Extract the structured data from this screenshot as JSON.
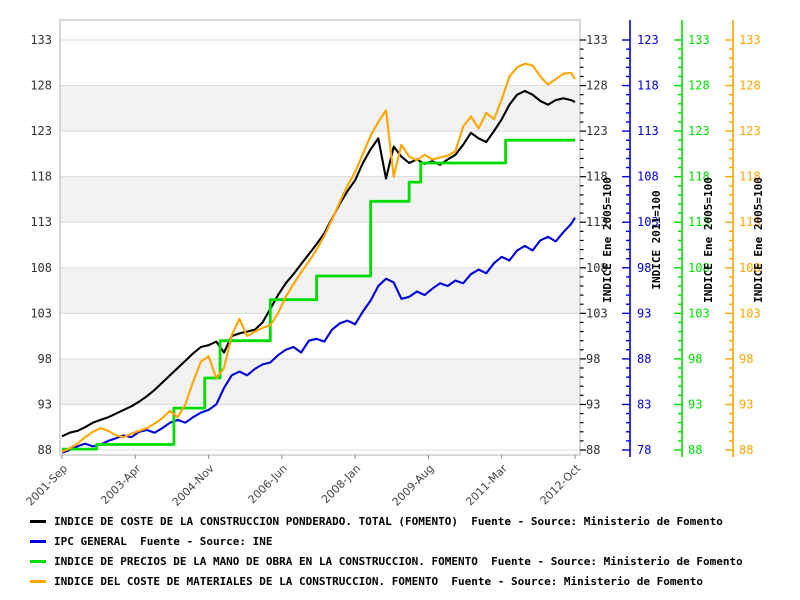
{
  "chart_data": {
    "type": "line",
    "title": "",
    "x_axis": {
      "unit": "months since 2001-Sep",
      "tick_months": [
        0,
        19,
        38,
        57,
        76,
        95,
        114,
        133
      ],
      "tick_labels": [
        "2001-Sep",
        "2003-Apr",
        "2004-Nov",
        "2006-Jun",
        "2008-Jan",
        "2009-Aug",
        "2011-Mar",
        "2012-Oct"
      ]
    },
    "y_axis_left": {
      "min": 88,
      "max": 133,
      "step": 5,
      "minor_step": 1,
      "label_color": "#333333"
    },
    "y_axes_right": [
      {
        "id": "fomento-total",
        "title": "INDICE Ene 2005=100",
        "min": 88,
        "max": 133,
        "step": 5,
        "minor_step": 1,
        "color": "#000000"
      },
      {
        "id": "ipc",
        "title": "INDICE 2011=100",
        "min": 78,
        "max": 123,
        "step": 5,
        "minor_step": 1,
        "color": "#0000dd"
      },
      {
        "id": "mano-de-obra",
        "title": "INDICE Ene 2005=100",
        "min": 88,
        "max": 133,
        "step": 5,
        "minor_step": 1,
        "color": "#00dd00"
      },
      {
        "id": "materiales",
        "title": "INDICE Ene 2005=100",
        "min": 88,
        "max": 133,
        "step": 5,
        "minor_step": 1,
        "color": "#ffa500"
      }
    ],
    "bands": [
      [
        93,
        98
      ],
      [
        103,
        108
      ],
      [
        113,
        118
      ],
      [
        123,
        128
      ]
    ],
    "band_color": "#f2f2f2",
    "grid_color": "#dcdcdc",
    "border_color": "#b0b0b0",
    "months": [
      0,
      2,
      4,
      6,
      8,
      10,
      12,
      14,
      16,
      18,
      20,
      22,
      24,
      26,
      28,
      30,
      32,
      34,
      36,
      38,
      40,
      42,
      44,
      46,
      48,
      50,
      52,
      54,
      56,
      58,
      60,
      62,
      64,
      66,
      68,
      70,
      72,
      74,
      76,
      78,
      80,
      82,
      84,
      86,
      88,
      90,
      92,
      94,
      96,
      98,
      100,
      102,
      104,
      106,
      108,
      110,
      112,
      114,
      116,
      118,
      120,
      122,
      124,
      126,
      128,
      130,
      132,
      133
    ],
    "series": [
      {
        "name": "indice-coste-construccion-total",
        "legend": "INDICE DE COSTE DE LA CONSTRUCCION PONDERADO. TOTAL (FOMENTO)  Fuente - Source: Ministerio de Fomento",
        "color": "#000000",
        "axis": "fomento-total",
        "step": false,
        "values": [
          89.5,
          89.9,
          90.1,
          90.5,
          91.0,
          91.3,
          91.6,
          92.0,
          92.4,
          92.8,
          93.3,
          93.9,
          94.6,
          95.4,
          96.2,
          97.0,
          97.8,
          98.6,
          99.3,
          99.5,
          99.9,
          98.7,
          100.5,
          100.8,
          101.0,
          101.2,
          102.0,
          103.5,
          105.0,
          106.3,
          107.3,
          108.4,
          109.5,
          110.6,
          111.8,
          113.4,
          115.0,
          116.4,
          117.6,
          119.5,
          121.0,
          122.2,
          117.8,
          121.3,
          120.2,
          119.5,
          119.9,
          119.4,
          119.7,
          119.3,
          119.9,
          120.4,
          121.5,
          122.8,
          122.2,
          121.8,
          123.0,
          124.3,
          125.9,
          127.0,
          127.4,
          127.0,
          126.3,
          125.9,
          126.4,
          126.6,
          126.4,
          126.2
        ]
      },
      {
        "name": "ipc-general",
        "legend": "IPC GENERAL  Fuente - Source: INE",
        "color": "#0000dd",
        "axis": "ipc",
        "step": false,
        "values": [
          77.7,
          78.0,
          78.4,
          78.7,
          78.4,
          78.6,
          79.0,
          79.3,
          79.6,
          79.4,
          80.0,
          80.2,
          79.9,
          80.4,
          81.0,
          81.3,
          81.0,
          81.6,
          82.1,
          82.4,
          83.0,
          84.8,
          86.2,
          86.6,
          86.2,
          86.9,
          87.4,
          87.6,
          88.4,
          89.0,
          89.3,
          88.7,
          90.0,
          90.2,
          89.9,
          91.2,
          91.9,
          92.2,
          91.8,
          93.2,
          94.4,
          96.0,
          96.8,
          96.4,
          94.6,
          94.8,
          95.4,
          95.0,
          95.7,
          96.3,
          96.0,
          96.6,
          96.3,
          97.3,
          97.8,
          97.4,
          98.5,
          99.2,
          98.8,
          99.9,
          100.4,
          99.9,
          101.0,
          101.4,
          100.9,
          101.9,
          102.8,
          103.5
        ]
      },
      {
        "name": "indice-mano-de-obra",
        "legend": "INDICE DE PRECIOS DE LA MANO DE OBRA EN LA CONSTRUCCION. FOMENTO  Fuente - Source: Ministerio de Fomento",
        "color": "#00dd00",
        "axis": "mano-de-obra",
        "step": true,
        "step_points": [
          [
            0,
            88.1
          ],
          [
            9,
            88.6
          ],
          [
            29,
            92.6
          ],
          [
            37,
            95.9
          ],
          [
            41,
            100.0
          ],
          [
            54,
            104.5
          ],
          [
            66,
            107.1
          ],
          [
            80,
            115.3
          ],
          [
            90,
            117.4
          ],
          [
            93,
            119.5
          ],
          [
            115,
            122.0
          ]
        ],
        "end_month": 133
      },
      {
        "name": "indice-materiales",
        "legend": "INDICE DEL COSTE DE MATERIALES DE LA CONSTRUCCION. FOMENTO  Fuente - Source: Ministerio de Fomento",
        "color": "#ffa500",
        "axis": "materiales",
        "step": false,
        "values": [
          87.8,
          88.2,
          88.7,
          89.4,
          90.0,
          90.4,
          90.1,
          89.6,
          89.4,
          89.8,
          90.1,
          90.4,
          90.9,
          91.5,
          92.3,
          91.6,
          93.0,
          95.5,
          97.7,
          98.3,
          95.9,
          97.0,
          100.6,
          102.4,
          100.5,
          101.0,
          101.4,
          101.7,
          103.0,
          104.8,
          106.2,
          107.5,
          108.7,
          110.0,
          111.5,
          113.3,
          115.2,
          117.0,
          118.5,
          120.5,
          122.5,
          124.0,
          125.3,
          118.0,
          121.5,
          120.2,
          119.8,
          120.4,
          119.9,
          120.1,
          120.3,
          120.8,
          123.5,
          124.6,
          123.3,
          125.0,
          124.3,
          126.5,
          129.0,
          130.0,
          130.4,
          130.2,
          129.0,
          128.1,
          128.7,
          129.3,
          129.4,
          128.7
        ]
      }
    ]
  }
}
